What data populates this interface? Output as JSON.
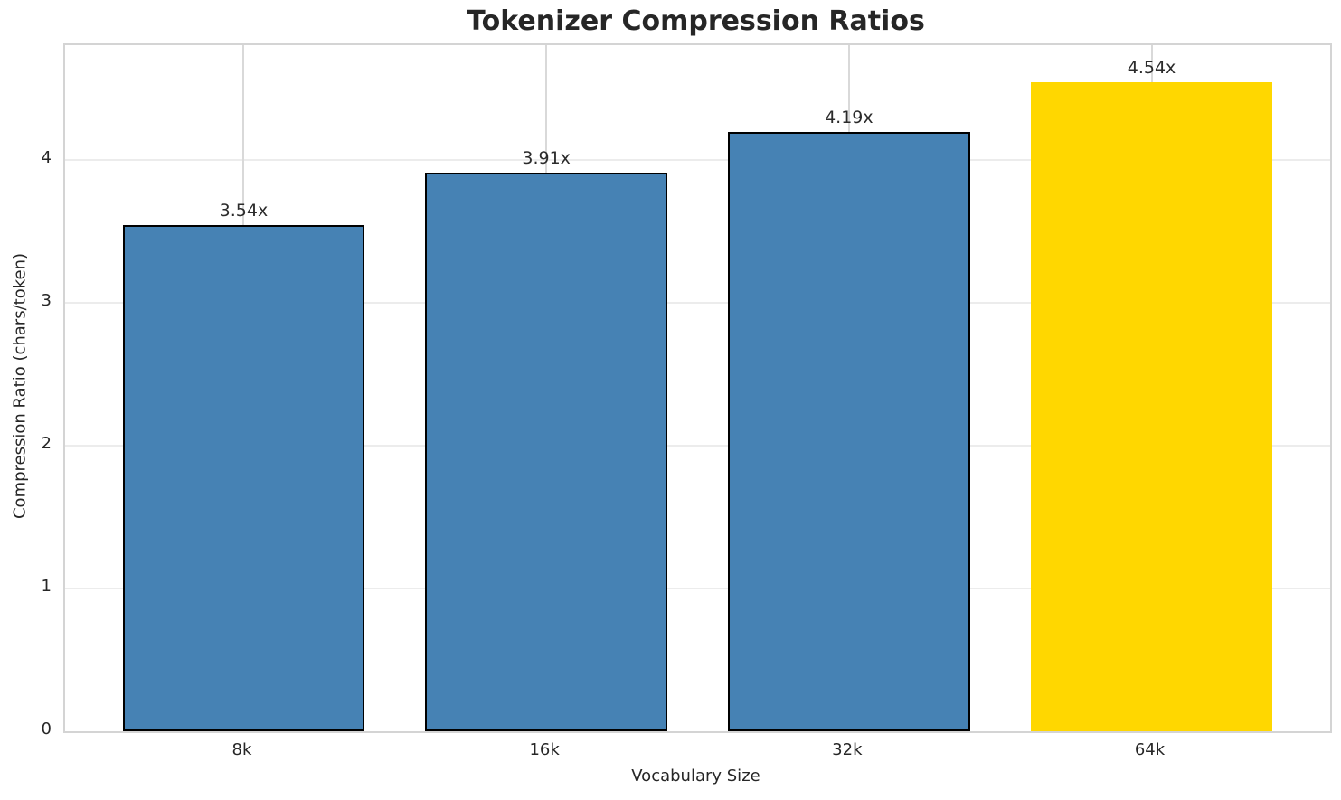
{
  "chart_data": {
    "type": "bar",
    "title": "Tokenizer Compression Ratios",
    "xlabel": "Vocabulary Size",
    "ylabel": "Compression Ratio (chars/token)",
    "categories": [
      "8k",
      "16k",
      "32k",
      "64k"
    ],
    "values": [
      3.54,
      3.91,
      4.19,
      4.54
    ],
    "bar_labels": [
      "3.54x",
      "3.91x",
      "4.19x",
      "4.54x"
    ],
    "bar_colors": [
      "#4682b4",
      "#4682b4",
      "#4682b4",
      "#ffd700"
    ],
    "bar_edge_colors": [
      "#000000",
      "#000000",
      "#000000",
      "none"
    ],
    "highlight_index": 3,
    "ylim": [
      0,
      4.8
    ],
    "yticks": [
      0,
      1,
      2,
      3,
      4
    ],
    "grid": "both",
    "legend": "none"
  }
}
